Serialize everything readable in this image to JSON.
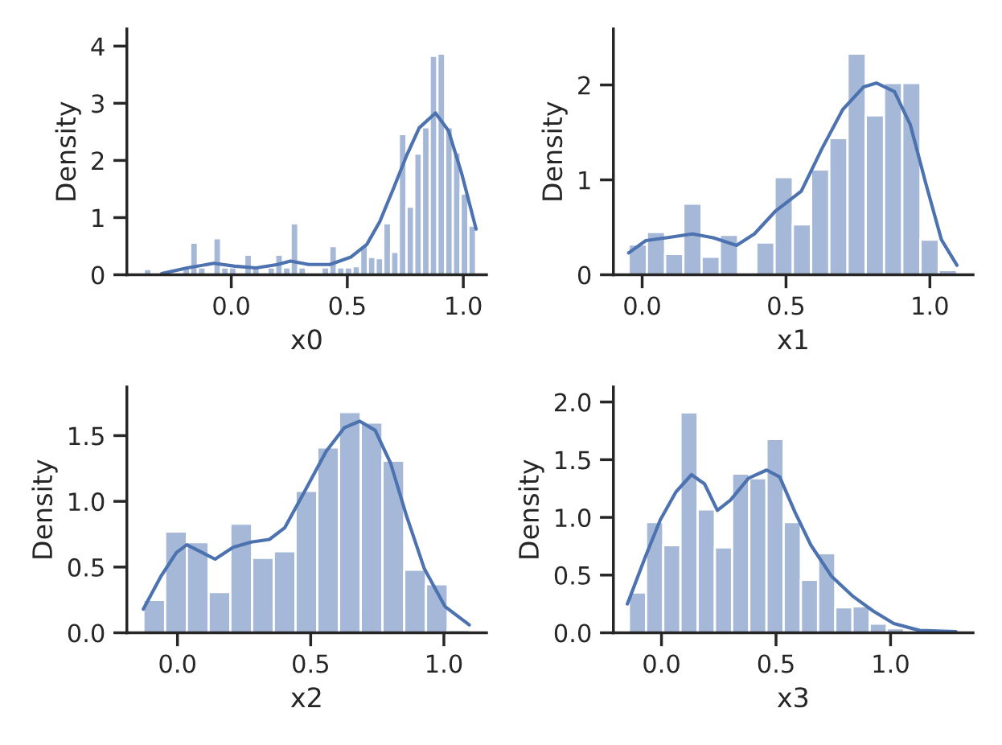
{
  "chart_data": [
    {
      "type": "histogram",
      "xlabel": "x0",
      "ylabel": "Density",
      "color": "#a5b8d7",
      "bins": [
        -0.377,
        -0.3437,
        -0.3104,
        -0.2771,
        -0.2438,
        -0.2105,
        -0.1772,
        -0.1439,
        -0.1106,
        -0.0773,
        -0.044,
        -0.0107,
        0.0226,
        0.0559,
        0.0892,
        0.1225,
        0.1558,
        0.1891,
        0.2224,
        0.2557,
        0.289,
        0.3223,
        0.3556,
        0.3889,
        0.4222,
        0.4555,
        0.4888,
        0.5221,
        0.5554,
        0.5887,
        0.622,
        0.6553,
        0.6886,
        0.7219,
        0.7552,
        0.7885,
        0.8218,
        0.8551,
        0.8884,
        0.9217,
        0.955,
        0.9883,
        1.0216,
        1.0549
      ],
      "values": [
        0.1,
        0,
        0,
        0,
        0,
        0.13,
        0.56,
        0.13,
        0,
        0.64,
        0.13,
        0.13,
        0,
        0.35,
        0.13,
        0,
        0.13,
        0.35,
        0.13,
        0.9,
        0.13,
        0,
        0,
        0.13,
        0.5,
        0.13,
        0.13,
        0.15,
        0.52,
        0.31,
        0.29,
        0.9,
        0.4,
        2.46,
        1.19,
        2.12,
        2.58,
        3.83,
        3.87,
        2.58,
        2.14,
        1.42,
        0.86
      ],
      "series": [
        {
          "type": "line",
          "color": "#4c72b0",
          "x": [
            -0.3,
            -0.19,
            -0.075,
            0.016,
            0.107,
            0.2,
            0.255,
            0.334,
            0.425,
            0.516,
            0.584,
            0.64,
            0.698,
            0.755,
            0.81,
            0.88,
            0.936,
            0.993,
            1.055
          ],
          "values": [
            0.02,
            0.12,
            0.2,
            0.15,
            0.12,
            0.18,
            0.24,
            0.18,
            0.18,
            0.31,
            0.53,
            0.93,
            1.5,
            2.08,
            2.57,
            2.83,
            2.52,
            1.77,
            0.8
          ]
        }
      ],
      "xlim": [
        -0.45,
        1.1
      ],
      "ylim": [
        0,
        4.3
      ],
      "xticks": [
        {
          "value": 0,
          "label": "0.0"
        },
        {
          "value": 0.5,
          "label": "0.5"
        },
        {
          "value": 1,
          "label": "1.0"
        }
      ],
      "yticks": [
        0,
        1,
        2,
        3,
        4
      ],
      "grid": false
    },
    {
      "type": "histogram",
      "xlabel": "x1",
      "ylabel": "Density",
      "color": "#a5b8d7",
      "bins": [
        -0.047,
        0.0164,
        0.0798,
        0.1432,
        0.2066,
        0.27,
        0.3334,
        0.3968,
        0.4602,
        0.5236,
        0.587,
        0.6504,
        0.7138,
        0.7772,
        0.8406,
        0.904,
        0.9674,
        1.0308,
        1.0942
      ],
      "values": [
        0.32,
        0.45,
        0.22,
        0.75,
        0.19,
        0.42,
        0,
        0.34,
        1.03,
        0.53,
        1.11,
        1.44,
        2.33,
        1.68,
        2.02,
        2.02,
        0.37,
        0.05
      ],
      "series": [
        {
          "type": "line",
          "color": "#4c72b0",
          "x": [
            -0.047,
            0.013,
            0.085,
            0.175,
            0.247,
            0.328,
            0.39,
            0.463,
            0.553,
            0.625,
            0.697,
            0.77,
            0.814,
            0.877,
            0.932,
            0.986,
            1.04,
            1.094
          ],
          "values": [
            0.23,
            0.36,
            0.39,
            0.43,
            0.39,
            0.31,
            0.43,
            0.67,
            0.88,
            1.33,
            1.74,
            1.98,
            2.02,
            1.93,
            1.58,
            0.96,
            0.37,
            0.1
          ]
        }
      ],
      "xlim": [
        -0.1,
        1.15
      ],
      "ylim": [
        0,
        2.59
      ],
      "xticks": [
        {
          "value": 0,
          "label": "0.0"
        },
        {
          "value": 0.5,
          "label": "0.5"
        },
        {
          "value": 1,
          "label": "1.0"
        }
      ],
      "yticks": [
        0,
        1,
        2
      ],
      "grid": false
    },
    {
      "type": "histogram",
      "xlabel": "x2",
      "ylabel": "Density",
      "color": "#a5b8d7",
      "bins": [
        -0.128,
        -0.0464,
        0.0352,
        0.1168,
        0.1984,
        0.28,
        0.3616,
        0.4432,
        0.5248,
        0.6064,
        0.688,
        0.7696,
        0.8512,
        0.9328,
        1.0144,
        1.096
      ],
      "values": [
        0.25,
        0.77,
        0.69,
        0.31,
        0.83,
        0.57,
        0.62,
        1.08,
        1.41,
        1.68,
        1.6,
        1.31,
        0.48,
        0.37,
        0.02
      ],
      "series": [
        {
          "type": "line",
          "color": "#4c72b0",
          "x": [
            -0.128,
            -0.062,
            -0.004,
            0.035,
            0.093,
            0.141,
            0.209,
            0.277,
            0.345,
            0.403,
            0.481,
            0.558,
            0.626,
            0.684,
            0.742,
            0.8,
            0.858,
            0.926,
            1.004,
            1.095
          ],
          "values": [
            0.18,
            0.43,
            0.61,
            0.67,
            0.61,
            0.56,
            0.65,
            0.69,
            0.71,
            0.8,
            1.09,
            1.38,
            1.56,
            1.61,
            1.54,
            1.29,
            0.9,
            0.49,
            0.2,
            0.06
          ]
        }
      ],
      "xlim": [
        -0.19,
        1.16
      ],
      "ylim": [
        0,
        1.87
      ],
      "xticks": [
        {
          "value": 0,
          "label": "0.0"
        },
        {
          "value": 0.5,
          "label": "0.5"
        },
        {
          "value": 1,
          "label": "1.0"
        }
      ],
      "yticks": [
        {
          "value": 0,
          "label": "0.0"
        },
        0.5,
        {
          "value": 1,
          "label": "1.0"
        },
        1.5
      ],
      "grid": false
    },
    {
      "type": "histogram",
      "xlabel": "x3",
      "ylabel": "Density",
      "color": "#a5b8d7",
      "bins": [
        -0.1425,
        -0.0674,
        0.0077,
        0.0828,
        0.1579,
        0.233,
        0.3081,
        0.3832,
        0.4583,
        0.5334,
        0.6085,
        0.6836,
        0.7587,
        0.8338,
        0.9089,
        0.984,
        1.0591,
        1.1342,
        1.2093,
        1.2844
      ],
      "values": [
        0.35,
        0.96,
        0.76,
        1.91,
        1.07,
        0.74,
        1.38,
        1.34,
        1.68,
        0.96,
        0.46,
        0.69,
        0.22,
        0.23,
        0.08,
        0.04,
        0,
        0.02,
        0.02
      ],
      "series": [
        {
          "type": "line",
          "color": "#4c72b0",
          "x": [
            -0.149,
            -0.072,
            -0.005,
            0.063,
            0.131,
            0.188,
            0.244,
            0.301,
            0.38,
            0.459,
            0.516,
            0.584,
            0.652,
            0.742,
            0.833,
            0.923,
            1.014,
            1.127,
            1.285
          ],
          "values": [
            0.25,
            0.65,
            0.98,
            1.22,
            1.37,
            1.29,
            1.06,
            1.15,
            1.34,
            1.41,
            1.35,
            1.04,
            0.76,
            0.49,
            0.32,
            0.19,
            0.08,
            0.02,
            0.01
          ]
        }
      ],
      "xlim": [
        -0.21,
        1.36
      ],
      "ylim": [
        0,
        2.13
      ],
      "xticks": [
        {
          "value": 0,
          "label": "0.0"
        },
        {
          "value": 0.5,
          "label": "0.5"
        },
        {
          "value": 1,
          "label": "1.0"
        }
      ],
      "yticks": [
        {
          "value": 0,
          "label": "0.0"
        },
        0.5,
        {
          "value": 1,
          "label": "1.0"
        },
        1.5,
        {
          "value": 2,
          "label": "2.0"
        }
      ],
      "grid": false
    }
  ]
}
